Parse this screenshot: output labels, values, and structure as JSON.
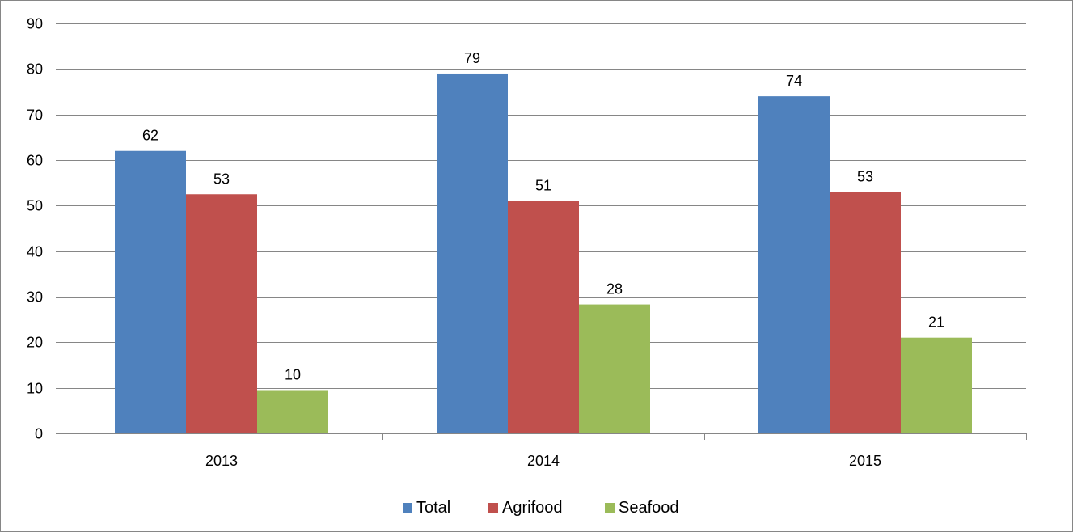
{
  "chart_data": {
    "type": "bar",
    "title": "",
    "xlabel": "",
    "ylabel": "",
    "categories": [
      "2013",
      "2014",
      "2015"
    ],
    "series": [
      {
        "name": "Total",
        "values": [
          62,
          79,
          74
        ],
        "labels": [
          "62",
          "79",
          "74"
        ],
        "color": "#4F81BD"
      },
      {
        "name": "Agrifood",
        "values": [
          52.5,
          51,
          53
        ],
        "labels": [
          "53",
          "51",
          "53"
        ],
        "color": "#C0504D"
      },
      {
        "name": "Seafood",
        "values": [
          9.5,
          28.3,
          21
        ],
        "labels": [
          "10",
          "28",
          "21"
        ],
        "color": "#9BBB59"
      }
    ],
    "ylim": [
      0,
      90
    ],
    "yticks": [
      0,
      10,
      20,
      30,
      40,
      50,
      60,
      70,
      80,
      90
    ],
    "ytick_labels": [
      "0",
      "10",
      "20",
      "30",
      "40",
      "50",
      "60",
      "70",
      "80",
      "90"
    ],
    "grid": true,
    "legend": {
      "position": "bottom",
      "entries": [
        "Total",
        "Agrifood",
        "Seafood"
      ]
    }
  },
  "colors": {
    "gridline": "#868686",
    "axis": "#868686",
    "frame_border": "#868686"
  }
}
